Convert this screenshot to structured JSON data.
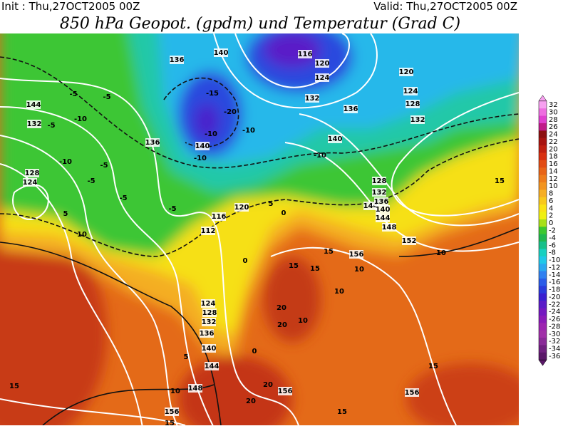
{
  "header": {
    "init": "Init : Thu,27OCT2005 00Z",
    "valid": "Valid: Thu,27OCT2005 00Z",
    "title": "850 hPa Geopot. (gpdm) und Temperatur (Grad C)"
  },
  "colorbar": {
    "labels": [
      32,
      30,
      28,
      26,
      24,
      22,
      20,
      18,
      16,
      14,
      12,
      10,
      8,
      6,
      4,
      2,
      0,
      -2,
      -4,
      -6,
      -8,
      -10,
      -12,
      -14,
      -16,
      -18,
      -20,
      -22,
      -24,
      -26,
      -28,
      -30,
      -32,
      -34,
      -36
    ],
    "colors": [
      "#f7a0f0",
      "#ee6ee0",
      "#e040d0",
      "#c01a8a",
      "#8c1010",
      "#a81410",
      "#c02010",
      "#d83010",
      "#e24c14",
      "#e86418",
      "#ee7c1c",
      "#f29420",
      "#f6ae24",
      "#f8c81c",
      "#fae214",
      "#f0f010",
      "#a8e018",
      "#3cc830",
      "#20b850",
      "#18c08a",
      "#18d0c0",
      "#20c8e8",
      "#2aa8f0",
      "#3080f0",
      "#2a5ce8",
      "#2a3cdc",
      "#3a20d0",
      "#5a1cc8",
      "#7418c0",
      "#8a1ab8",
      "#9c24b0",
      "#a030a8",
      "#8a2a98",
      "#702080",
      "#5a1868"
    ]
  },
  "contour_labels": [
    "136",
    "140",
    "144",
    "132",
    "128",
    "124",
    "136",
    "140",
    "116",
    "120",
    "124",
    "132",
    "136",
    "140",
    "144",
    "120",
    "124",
    "128",
    "132",
    "128",
    "132",
    "136",
    "140",
    "144",
    "148",
    "152",
    "156",
    "112",
    "116",
    "120",
    "124",
    "128",
    "132",
    "136",
    "140",
    "144",
    "148",
    "156",
    "156",
    "156",
    "-5",
    "-5",
    "-5",
    "-10",
    "-10",
    "-15",
    "-20",
    "-10",
    "-10",
    "-10",
    "-5",
    "-5",
    "-10",
    "-5",
    "-5",
    "5",
    "0",
    "5",
    "10",
    "15",
    "15",
    "10",
    "10",
    "20",
    "10",
    "15",
    "20",
    "15",
    "15",
    "15",
    "10",
    "5",
    "10",
    "15",
    "20",
    "20",
    "15",
    "0",
    "0"
  ]
}
